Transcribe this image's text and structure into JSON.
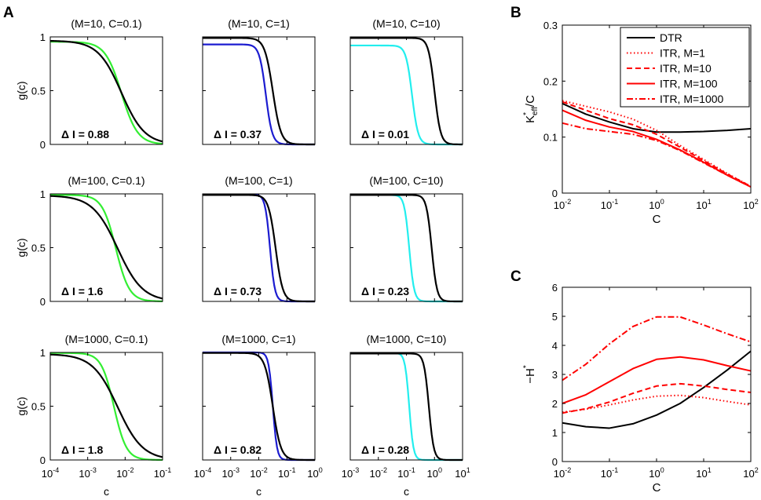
{
  "panel_labels": [
    "A",
    "B",
    "C"
  ],
  "colors": {
    "dtr": "#000000",
    "itr": "#ff0000",
    "green": "#33ee33",
    "blue": "#1c1cd0",
    "cyan": "#22eeee"
  },
  "chart_data": [
    {
      "type": "line",
      "panel": "A",
      "grid_rows": 3,
      "grid_cols": 3,
      "ylabel": "g(c)",
      "xlabel": "c",
      "yticks": [
        "0",
        "0.5",
        "1"
      ],
      "ylim": [
        0,
        1
      ],
      "columns": [
        {
          "xlim_exp": [
            -4,
            -1
          ],
          "xtick_exps": [
            -4,
            -3,
            -2,
            -1
          ]
        },
        {
          "xlim_exp": [
            -4,
            0
          ],
          "xtick_exps": [
            -4,
            -3,
            -2,
            -1,
            0
          ]
        },
        {
          "xlim_exp": [
            -3,
            1
          ],
          "xtick_exps": [
            -3,
            -2,
            -1,
            0,
            1
          ]
        }
      ],
      "subplots": [
        {
          "title": "(M=10, C=0.1)",
          "delta_label": "Δ I = 0.88",
          "color": "green",
          "series": [
            {
              "name": "black",
              "log10_mid": -2.1,
              "slope": 1.4,
              "top": 0.965
            },
            {
              "name": "colored",
              "log10_mid": -2.1,
              "slope": 2.0,
              "top": 0.955
            }
          ]
        },
        {
          "title": "(M=10, C=1)",
          "delta_label": "Δ I = 0.37",
          "color": "blue",
          "series": [
            {
              "name": "black",
              "log10_mid": -1.5,
              "slope": 3.0,
              "top": 0.99
            },
            {
              "name": "colored",
              "log10_mid": -1.75,
              "slope": 3.8,
              "top": 0.93
            }
          ]
        },
        {
          "title": "(M=10, C=10)",
          "delta_label": "Δ I = 0.01",
          "color": "cyan",
          "series": [
            {
              "name": "black",
              "log10_mid": 0.0,
              "slope": 4.0,
              "top": 0.99
            },
            {
              "name": "colored",
              "log10_mid": -0.8,
              "slope": 4.0,
              "top": 0.92
            }
          ]
        },
        {
          "title": "(M=100, C=0.1)",
          "delta_label": "Δ I = 1.6",
          "color": "green",
          "series": [
            {
              "name": "black",
              "log10_mid": -2.2,
              "slope": 1.3,
              "top": 0.985
            },
            {
              "name": "colored",
              "log10_mid": -2.25,
              "slope": 2.4,
              "top": 0.99
            }
          ]
        },
        {
          "title": "(M=100, C=1)",
          "delta_label": "Δ I = 0.73",
          "color": "blue",
          "series": [
            {
              "name": "black",
              "log10_mid": -1.4,
              "slope": 3.4,
              "top": 0.99
            },
            {
              "name": "colored",
              "log10_mid": -1.6,
              "slope": 5.0,
              "top": 0.995
            }
          ]
        },
        {
          "title": "(M=100, C=10)",
          "delta_label": "Δ I = 0.23",
          "color": "cyan",
          "series": [
            {
              "name": "black",
              "log10_mid": -0.1,
              "slope": 4.6,
              "top": 0.99
            },
            {
              "name": "colored",
              "log10_mid": -0.9,
              "slope": 5.0,
              "top": 0.99
            }
          ]
        },
        {
          "title": "(M=1000, C=0.1)",
          "delta_label": "Δ I = 1.8",
          "color": "green",
          "series": [
            {
              "name": "black",
              "log10_mid": -2.2,
              "slope": 1.3,
              "top": 0.985
            },
            {
              "name": "colored",
              "log10_mid": -2.3,
              "slope": 2.6,
              "top": 0.995
            }
          ]
        },
        {
          "title": "(M=1000, C=1)",
          "delta_label": "Δ I = 0.82",
          "color": "blue",
          "series": [
            {
              "name": "black",
              "log10_mid": -1.5,
              "slope": 3.0,
              "top": 0.995
            },
            {
              "name": "colored",
              "log10_mid": -1.5,
              "slope": 5.8,
              "top": 1.0
            }
          ]
        },
        {
          "title": "(M=1000, C=10)",
          "delta_label": "Δ I = 0.28",
          "color": "cyan",
          "series": [
            {
              "name": "black",
              "log10_mid": -0.2,
              "slope": 5.0,
              "top": 0.99
            },
            {
              "name": "colored",
              "log10_mid": -0.9,
              "slope": 5.8,
              "top": 0.995
            }
          ]
        }
      ]
    },
    {
      "type": "line",
      "panel": "B",
      "title": "",
      "xlabel": "C",
      "ylabel_main": "K",
      "ylabel_sup": "*",
      "ylabel_sub": "eff",
      "ylabel_tail": "/C",
      "xlim_exp": [
        -2,
        2
      ],
      "xtick_exps": [
        -2,
        -1,
        0,
        1,
        2
      ],
      "ylim": [
        0,
        0.3
      ],
      "yticks": [
        "0",
        "0.1",
        "0.2",
        "0.3"
      ],
      "yticks_values": [
        0,
        0.1,
        0.2,
        0.3
      ],
      "legend_position": "top-right",
      "series": [
        {
          "name": "DTR",
          "dash": "solid",
          "color": "dtr",
          "points": [
            [
              -2,
              0.16
            ],
            [
              -1.5,
              0.141
            ],
            [
              -1,
              0.127
            ],
            [
              -0.5,
              0.115
            ],
            [
              0,
              0.109
            ],
            [
              0.5,
              0.109
            ],
            [
              1,
              0.11
            ],
            [
              1.5,
              0.112
            ],
            [
              2,
              0.115
            ]
          ]
        },
        {
          "name": "ITR, M=1",
          "dash": "dotted",
          "color": "itr",
          "points": [
            [
              -2,
              0.165
            ],
            [
              -1.5,
              0.155
            ],
            [
              -1,
              0.145
            ],
            [
              -0.5,
              0.132
            ],
            [
              0,
              0.112
            ],
            [
              0.5,
              0.085
            ],
            [
              1,
              0.06
            ],
            [
              1.5,
              0.035
            ],
            [
              2,
              0.012
            ]
          ]
        },
        {
          "name": "ITR, M=10",
          "dash": "dashed",
          "color": "itr",
          "points": [
            [
              -2,
              0.163
            ],
            [
              -1.5,
              0.148
            ],
            [
              -1,
              0.133
            ],
            [
              -0.5,
              0.122
            ],
            [
              0,
              0.105
            ],
            [
              0.5,
              0.082
            ],
            [
              1,
              0.058
            ],
            [
              1.5,
              0.034
            ],
            [
              2,
              0.012
            ]
          ]
        },
        {
          "name": "ITR, M=100",
          "dash": "solid",
          "color": "itr",
          "points": [
            [
              -2,
              0.148
            ],
            [
              -1.5,
              0.13
            ],
            [
              -1,
              0.118
            ],
            [
              -0.5,
              0.11
            ],
            [
              0,
              0.096
            ],
            [
              0.5,
              0.077
            ],
            [
              1,
              0.055
            ],
            [
              1.5,
              0.032
            ],
            [
              2,
              0.011
            ]
          ]
        },
        {
          "name": "ITR, M=1000",
          "dash": "dashdot",
          "color": "itr",
          "points": [
            [
              -2,
              0.125
            ],
            [
              -1.5,
              0.115
            ],
            [
              -1,
              0.11
            ],
            [
              -0.5,
              0.105
            ],
            [
              0,
              0.094
            ],
            [
              0.5,
              0.076
            ],
            [
              1,
              0.054
            ],
            [
              1.5,
              0.032
            ],
            [
              2,
              0.011
            ]
          ]
        }
      ]
    },
    {
      "type": "line",
      "panel": "C",
      "title": "",
      "xlabel": "C",
      "ylabel_main": "−H",
      "ylabel_sup": "*",
      "xlim_exp": [
        -2,
        2
      ],
      "xtick_exps": [
        -2,
        -1,
        0,
        1,
        2
      ],
      "ylim": [
        0,
        6
      ],
      "yticks": [
        "0",
        "1",
        "2",
        "3",
        "4",
        "5",
        "6"
      ],
      "yticks_values": [
        0,
        1,
        2,
        3,
        4,
        5,
        6
      ],
      "series": [
        {
          "name": "DTR",
          "dash": "solid",
          "color": "dtr",
          "points": [
            [
              -2,
              1.33
            ],
            [
              -1.5,
              1.2
            ],
            [
              -1,
              1.15
            ],
            [
              -0.5,
              1.3
            ],
            [
              0,
              1.6
            ],
            [
              0.5,
              2.0
            ],
            [
              1,
              2.55
            ],
            [
              1.5,
              3.15
            ],
            [
              2,
              3.8
            ]
          ]
        },
        {
          "name": "ITR, M=1",
          "dash": "dotted",
          "color": "itr",
          "points": [
            [
              -2,
              1.7
            ],
            [
              -1.5,
              1.8
            ],
            [
              -1,
              1.95
            ],
            [
              -0.5,
              2.12
            ],
            [
              0,
              2.25
            ],
            [
              0.5,
              2.28
            ],
            [
              1,
              2.2
            ],
            [
              1.5,
              2.07
            ],
            [
              2,
              1.95
            ]
          ]
        },
        {
          "name": "ITR, M=10",
          "dash": "dashed",
          "color": "itr",
          "points": [
            [
              -2,
              1.67
            ],
            [
              -1.5,
              1.82
            ],
            [
              -1,
              2.05
            ],
            [
              -0.5,
              2.35
            ],
            [
              0,
              2.6
            ],
            [
              0.5,
              2.68
            ],
            [
              1,
              2.6
            ],
            [
              1.5,
              2.48
            ],
            [
              2,
              2.38
            ]
          ]
        },
        {
          "name": "ITR, M=100",
          "dash": "solid",
          "color": "itr",
          "points": [
            [
              -2,
              2.0
            ],
            [
              -1.5,
              2.3
            ],
            [
              -1,
              2.75
            ],
            [
              -0.5,
              3.2
            ],
            [
              0,
              3.52
            ],
            [
              0.5,
              3.6
            ],
            [
              1,
              3.5
            ],
            [
              1.5,
              3.3
            ],
            [
              2,
              3.12
            ]
          ]
        },
        {
          "name": "ITR, M=1000",
          "dash": "dashdot",
          "color": "itr",
          "points": [
            [
              -2,
              2.8
            ],
            [
              -1.5,
              3.35
            ],
            [
              -1,
              4.05
            ],
            [
              -0.5,
              4.65
            ],
            [
              0,
              4.98
            ],
            [
              0.5,
              4.98
            ],
            [
              1,
              4.7
            ],
            [
              1.5,
              4.4
            ],
            [
              2,
              4.12
            ]
          ]
        }
      ]
    }
  ]
}
